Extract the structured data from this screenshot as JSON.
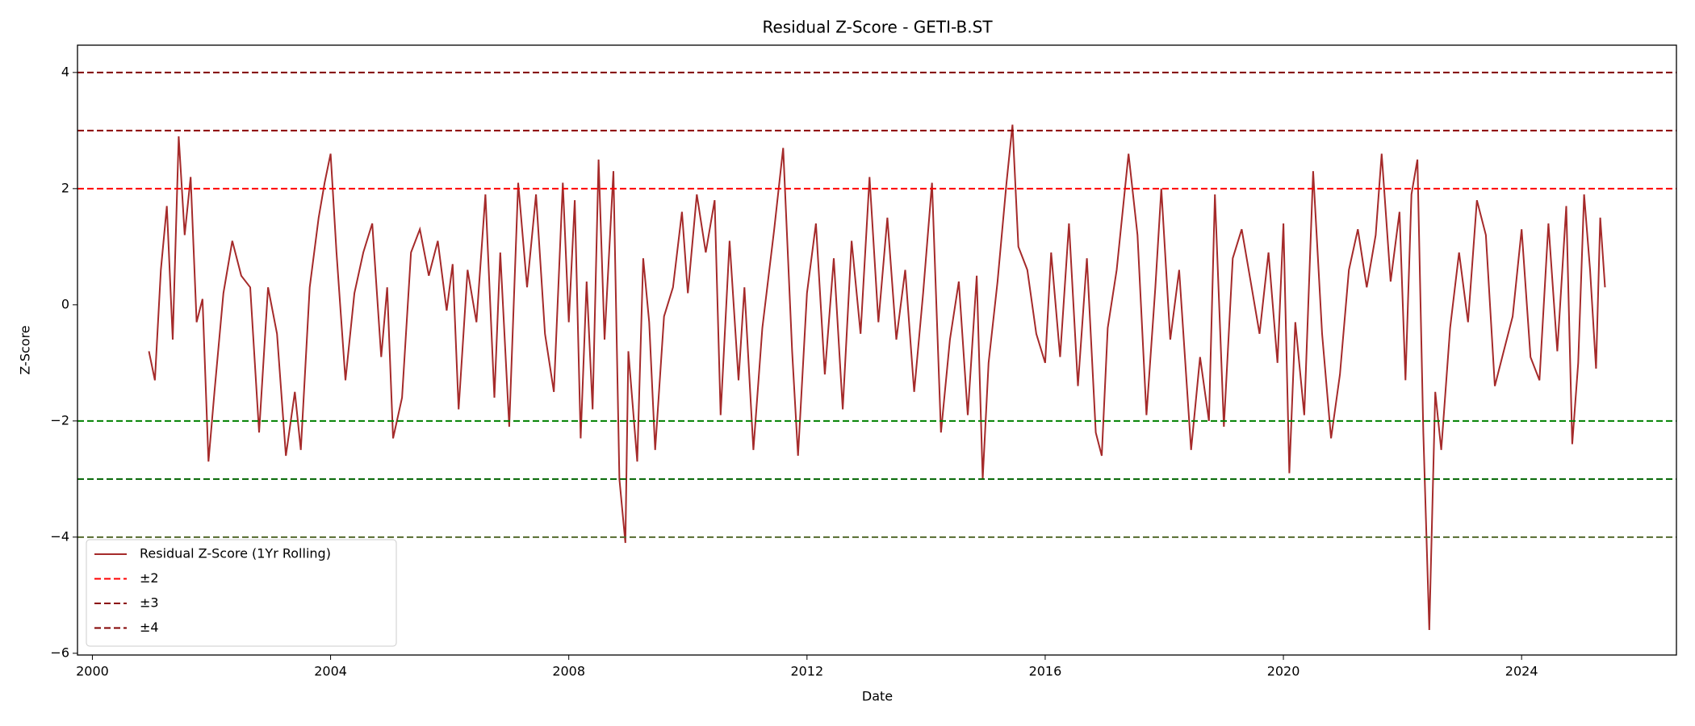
{
  "chart_data": {
    "type": "line",
    "title": "Residual Z-Score - GETI-B.ST",
    "xlabel": "Date",
    "ylabel": "Z-Score",
    "x": [
      2000.95,
      2001.05,
      2001.15,
      2001.25,
      2001.35,
      2001.45,
      2001.55,
      2001.65,
      2001.75,
      2001.85,
      2001.95,
      2002.05,
      2002.2,
      2002.35,
      2002.5,
      2002.65,
      2002.8,
      2002.95,
      2003.1,
      2003.25,
      2003.4,
      2003.5,
      2003.65,
      2003.8,
      2003.9,
      2004.0,
      2004.1,
      2004.25,
      2004.4,
      2004.55,
      2004.7,
      2004.85,
      2004.95,
      2005.05,
      2005.2,
      2005.35,
      2005.5,
      2005.65,
      2005.8,
      2005.95,
      2006.05,
      2006.15,
      2006.3,
      2006.45,
      2006.6,
      2006.75,
      2006.85,
      2007.0,
      2007.15,
      2007.3,
      2007.45,
      2007.6,
      2007.75,
      2007.9,
      2008.0,
      2008.1,
      2008.2,
      2008.3,
      2008.4,
      2008.5,
      2008.6,
      2008.75,
      2008.85,
      2008.95,
      2009.0,
      2009.15,
      2009.25,
      2009.35,
      2009.45,
      2009.6,
      2009.75,
      2009.9,
      2010.0,
      2010.15,
      2010.3,
      2010.45,
      2010.55,
      2010.7,
      2010.85,
      2010.95,
      2011.1,
      2011.25,
      2011.45,
      2011.6,
      2011.75,
      2011.85,
      2012.0,
      2012.15,
      2012.3,
      2012.45,
      2012.6,
      2012.75,
      2012.9,
      2013.05,
      2013.2,
      2013.35,
      2013.5,
      2013.65,
      2013.8,
      2013.95,
      2014.1,
      2014.25,
      2014.4,
      2014.55,
      2014.7,
      2014.85,
      2014.95,
      2015.05,
      2015.2,
      2015.35,
      2015.45,
      2015.55,
      2015.7,
      2015.85,
      2016.0,
      2016.1,
      2016.25,
      2016.4,
      2016.55,
      2016.7,
      2016.85,
      2016.95,
      2017.05,
      2017.2,
      2017.4,
      2017.55,
      2017.7,
      2017.85,
      2017.95,
      2018.1,
      2018.25,
      2018.45,
      2018.6,
      2018.75,
      2018.85,
      2019.0,
      2019.15,
      2019.3,
      2019.45,
      2019.6,
      2019.75,
      2019.9,
      2020.0,
      2020.1,
      2020.2,
      2020.35,
      2020.5,
      2020.65,
      2020.8,
      2020.95,
      2021.1,
      2021.25,
      2021.4,
      2021.55,
      2021.65,
      2021.8,
      2021.95,
      2022.05,
      2022.15,
      2022.25,
      2022.35,
      2022.45,
      2022.55,
      2022.65,
      2022.8,
      2022.95,
      2023.1,
      2023.25,
      2023.4,
      2023.55,
      2023.7,
      2023.85,
      2024.0,
      2024.15,
      2024.3,
      2024.45,
      2024.6,
      2024.75,
      2024.85,
      2024.95,
      2025.05,
      2025.15,
      2025.25,
      2025.32,
      2025.4
    ],
    "series": [
      {
        "name": "Residual Z-Score (1Yr Rolling)",
        "color": "#a52a2a",
        "values": [
          -0.8,
          -1.3,
          0.6,
          1.7,
          -0.6,
          2.9,
          1.2,
          2.2,
          -0.3,
          0.1,
          -2.7,
          -1.5,
          0.2,
          1.1,
          0.5,
          0.3,
          -2.2,
          0.3,
          -0.5,
          -2.6,
          -1.5,
          -2.5,
          0.3,
          1.5,
          2.1,
          2.6,
          0.9,
          -1.3,
          0.2,
          0.9,
          1.4,
          -0.9,
          0.3,
          -2.3,
          -1.6,
          0.9,
          1.3,
          0.5,
          1.1,
          -0.1,
          0.7,
          -1.8,
          0.6,
          -0.3,
          1.9,
          -1.6,
          0.9,
          -2.1,
          2.1,
          0.3,
          1.9,
          -0.5,
          -1.5,
          2.1,
          -0.3,
          1.8,
          -2.3,
          0.4,
          -1.8,
          2.5,
          -0.6,
          2.3,
          -3.0,
          -4.1,
          -0.8,
          -2.7,
          0.8,
          -0.3,
          -2.5,
          -0.2,
          0.3,
          1.6,
          0.2,
          1.9,
          0.9,
          1.8,
          -1.9,
          1.1,
          -1.3,
          0.3,
          -2.5,
          -0.4,
          1.3,
          2.7,
          -0.8,
          -2.6,
          0.2,
          1.4,
          -1.2,
          0.8,
          -1.8,
          1.1,
          -0.5,
          2.2,
          -0.3,
          1.5,
          -0.6,
          0.6,
          -1.5,
          0.2,
          2.1,
          -2.2,
          -0.6,
          0.4,
          -1.9,
          0.5,
          -3.0,
          -1.0,
          0.4,
          2.1,
          3.1,
          1.0,
          0.6,
          -0.5,
          -1.0,
          0.9,
          -0.9,
          1.4,
          -1.4,
          0.8,
          -2.2,
          -2.6,
          -0.4,
          0.6,
          2.6,
          1.2,
          -1.9,
          0.3,
          2.0,
          -0.6,
          0.6,
          -2.5,
          -0.9,
          -2.0,
          1.9,
          -2.1,
          0.8,
          1.3,
          0.4,
          -0.5,
          0.9,
          -1.0,
          1.4,
          -2.9,
          -0.3,
          -1.9,
          2.3,
          -0.5,
          -2.3,
          -1.2,
          0.6,
          1.3,
          0.3,
          1.2,
          2.6,
          0.4,
          1.6,
          -1.3,
          1.9,
          2.5,
          -2.2,
          -5.6,
          -1.5,
          -2.5,
          -0.4,
          0.9,
          -0.3,
          1.8,
          1.2,
          -1.4,
          -0.8,
          -0.2,
          1.3,
          -0.9,
          -1.3,
          1.4,
          -0.8,
          1.7,
          -2.4,
          -1.0,
          1.9,
          0.6,
          -1.1,
          1.5,
          0.3
        ]
      }
    ],
    "hlines": [
      {
        "name": "±2",
        "value": 2,
        "color": "#ff0000"
      },
      {
        "value": -2,
        "color": "#008000"
      },
      {
        "name": "±3",
        "value": 3,
        "color": "#8b0000"
      },
      {
        "value": -3,
        "color": "#006400"
      },
      {
        "name": "±4",
        "value": 4,
        "color": "#800000"
      },
      {
        "value": -4,
        "color": "#556b2f"
      }
    ],
    "xlim": [
      1999.75,
      2026.6
    ],
    "xticks": [
      2000,
      2004,
      2008,
      2012,
      2016,
      2020,
      2024
    ],
    "ylim": [
      -6.03,
      4.47
    ],
    "yticks": [
      {
        "value": -6,
        "label": "−6"
      },
      {
        "value": -4,
        "label": "−4"
      },
      {
        "value": -2,
        "label": "−2"
      },
      0,
      2,
      4
    ],
    "legend": "lower left"
  }
}
